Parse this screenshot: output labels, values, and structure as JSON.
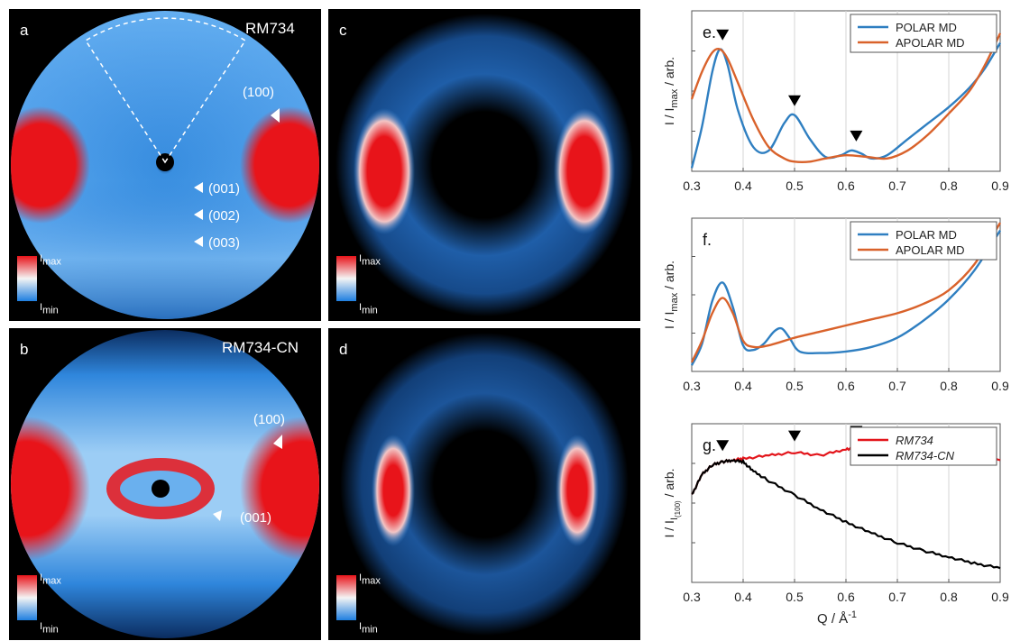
{
  "panels": {
    "a": {
      "label": "a",
      "sample": "RM734",
      "annotations": [
        "(100)",
        "(001)",
        "(002)",
        "(003)"
      ]
    },
    "b": {
      "label": "b",
      "sample": "RM734-CN",
      "annotations": [
        "(100)",
        "(001)"
      ]
    },
    "c": {
      "label": "c"
    },
    "d": {
      "label": "d"
    }
  },
  "colorbar": {
    "max": "I",
    "max_sub": "max",
    "min": "I",
    "min_sub": "min"
  },
  "colors": {
    "polar": "#2f7fc1",
    "apolar": "#d9622b",
    "rm734": "#e3151b",
    "rm734cn": "#000000",
    "map_red": "#e8141a",
    "map_blue": "#3a8fe0"
  },
  "chart_data": [
    {
      "type": "line",
      "panel": "e.",
      "ylabel": "I / I_max / arb.",
      "xlim": [
        0.3,
        0.9
      ],
      "xticks": [
        "0.3",
        "0.4",
        "0.5",
        "0.6",
        "0.7",
        "0.8",
        "0.9"
      ],
      "grid": "vertical",
      "legend": "top-right",
      "markers_x": [
        0.36,
        0.5,
        0.62
      ],
      "series": [
        {
          "name": "POLAR MD",
          "x": [
            0.3,
            0.32,
            0.34,
            0.355,
            0.37,
            0.39,
            0.42,
            0.45,
            0.48,
            0.5,
            0.53,
            0.56,
            0.59,
            0.61,
            0.63,
            0.65,
            0.68,
            0.72,
            0.76,
            0.8,
            0.84,
            0.87,
            0.9
          ],
          "y": [
            0.02,
            0.28,
            0.62,
            0.76,
            0.66,
            0.38,
            0.15,
            0.13,
            0.3,
            0.35,
            0.2,
            0.09,
            0.1,
            0.13,
            0.11,
            0.08,
            0.1,
            0.2,
            0.3,
            0.4,
            0.52,
            0.64,
            0.8
          ]
        },
        {
          "name": "APOLAR MD",
          "x": [
            0.3,
            0.32,
            0.34,
            0.355,
            0.37,
            0.39,
            0.42,
            0.45,
            0.48,
            0.5,
            0.53,
            0.56,
            0.6,
            0.64,
            0.68,
            0.72,
            0.76,
            0.8,
            0.84,
            0.87,
            0.9
          ],
          "y": [
            0.45,
            0.62,
            0.74,
            0.76,
            0.7,
            0.55,
            0.32,
            0.15,
            0.08,
            0.06,
            0.06,
            0.08,
            0.1,
            0.09,
            0.08,
            0.13,
            0.23,
            0.36,
            0.5,
            0.66,
            0.86
          ]
        }
      ]
    },
    {
      "type": "line",
      "panel": "f.",
      "ylabel": "I / I_max / arb.",
      "xlim": [
        0.3,
        0.9
      ],
      "xticks": [
        "0.3",
        "0.4",
        "0.5",
        "0.6",
        "0.7",
        "0.8",
        "0.9"
      ],
      "grid": "vertical",
      "legend": "top-right",
      "series": [
        {
          "name": "POLAR MD",
          "x": [
            0.3,
            0.32,
            0.34,
            0.36,
            0.38,
            0.4,
            0.42,
            0.44,
            0.46,
            0.475,
            0.49,
            0.51,
            0.55,
            0.6,
            0.65,
            0.7,
            0.75,
            0.8,
            0.85,
            0.9
          ],
          "y": [
            0.04,
            0.18,
            0.46,
            0.58,
            0.42,
            0.17,
            0.14,
            0.18,
            0.26,
            0.28,
            0.22,
            0.13,
            0.12,
            0.13,
            0.16,
            0.22,
            0.33,
            0.47,
            0.66,
            0.92
          ]
        },
        {
          "name": "APOLAR MD",
          "x": [
            0.3,
            0.32,
            0.34,
            0.36,
            0.38,
            0.4,
            0.42,
            0.45,
            0.5,
            0.55,
            0.6,
            0.65,
            0.7,
            0.75,
            0.8,
            0.85,
            0.9
          ],
          "y": [
            0.06,
            0.2,
            0.38,
            0.48,
            0.38,
            0.2,
            0.16,
            0.17,
            0.22,
            0.26,
            0.3,
            0.34,
            0.38,
            0.44,
            0.53,
            0.7,
            0.97
          ]
        }
      ]
    },
    {
      "type": "line",
      "panel": "g.",
      "ylabel": "I / I_I(100) / arb.",
      "xlabel": "Q / Å",
      "xlabel_sup": "-1",
      "xlim": [
        0.3,
        0.9
      ],
      "xticks": [
        "0.3",
        "0.4",
        "0.5",
        "0.6",
        "0.7",
        "0.8",
        "0.9"
      ],
      "grid": "vertical",
      "legend": "top-right",
      "markers_x": [
        0.36,
        0.5,
        0.62
      ],
      "series": [
        {
          "name": "RM734",
          "x": [
            0.3,
            0.32,
            0.34,
            0.36,
            0.38,
            0.4,
            0.45,
            0.5,
            0.55,
            0.6,
            0.62,
            0.65,
            0.7,
            0.75,
            0.8,
            0.85,
            0.9
          ],
          "y": [
            0.55,
            0.68,
            0.74,
            0.76,
            0.77,
            0.78,
            0.8,
            0.82,
            0.8,
            0.84,
            0.85,
            0.83,
            0.82,
            0.81,
            0.8,
            0.79,
            0.77
          ]
        },
        {
          "name": "RM734-CN",
          "x": [
            0.3,
            0.32,
            0.34,
            0.36,
            0.38,
            0.4,
            0.42,
            0.45,
            0.5,
            0.55,
            0.6,
            0.65,
            0.7,
            0.75,
            0.8,
            0.85,
            0.9
          ],
          "y": [
            0.55,
            0.68,
            0.74,
            0.76,
            0.77,
            0.76,
            0.7,
            0.64,
            0.55,
            0.46,
            0.38,
            0.31,
            0.25,
            0.2,
            0.16,
            0.12,
            0.09
          ]
        }
      ]
    }
  ]
}
